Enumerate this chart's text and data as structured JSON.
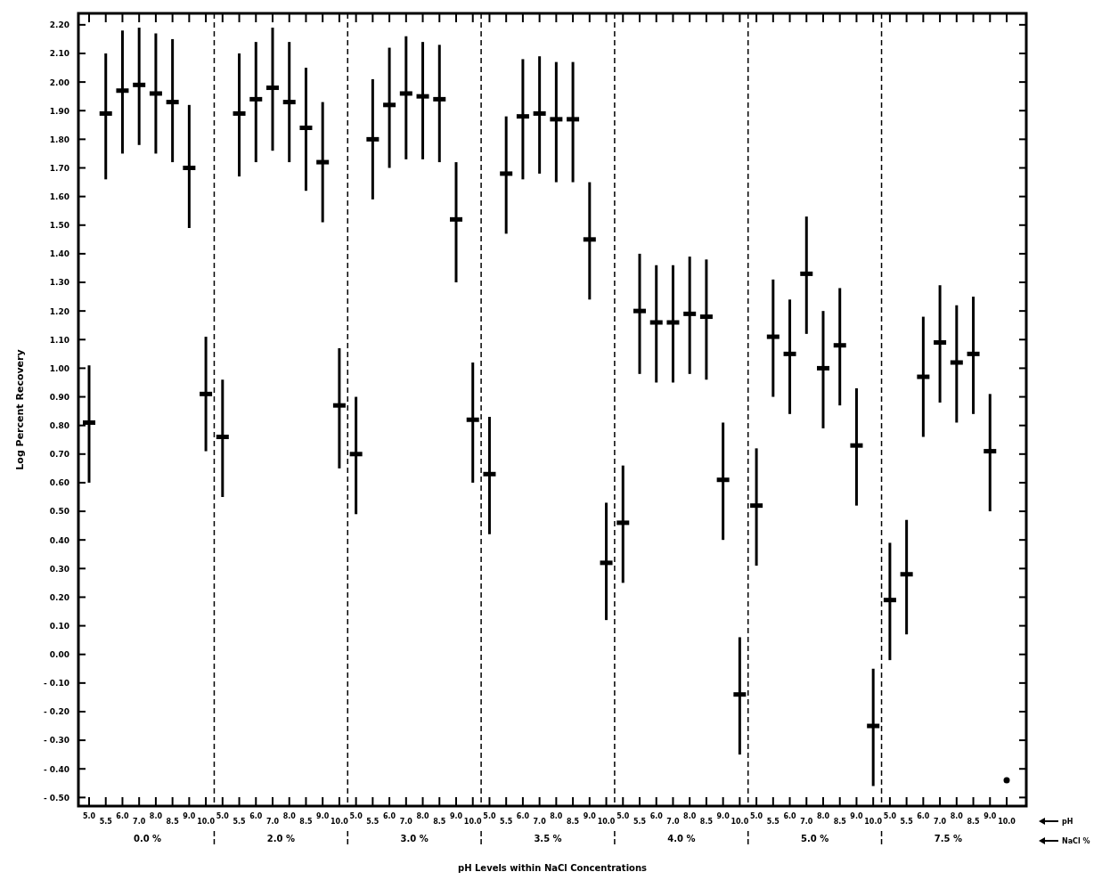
{
  "chart_data": {
    "type": "scatter",
    "xlabel": "pH Levels within NaCl Concentrations",
    "ylabel": "Log Percent Recovery",
    "categories": [
      "5.0",
      "5.5",
      "6.0",
      "7.0",
      "8.0",
      "8.5",
      "9.0",
      "10.0",
      "5.0",
      "5.5",
      "6.0",
      "7.0",
      "8.0",
      "8.5",
      "9.0",
      "10.0",
      "5.0",
      "5.5",
      "6.0",
      "7.0",
      "8.0",
      "8.5",
      "9.0",
      "10.0",
      "5.0",
      "5.5",
      "6.0",
      "7.0",
      "8.0",
      "8.5",
      "9.0",
      "10.0",
      "5.0",
      "5.5",
      "6.0",
      "7.0",
      "8.0",
      "8.5",
      "9.0",
      "10.0",
      "5.0",
      "5.5",
      "6.0",
      "7.0",
      "8.0",
      "8.5",
      "9.0",
      "10.0",
      "5.0",
      "5.5",
      "6.0",
      "7.0",
      "8.0",
      "8.5",
      "9.0",
      "10.0"
    ],
    "series": [
      {
        "color": "#000000",
        "values": [
          0.81,
          1.89,
          1.97,
          1.99,
          1.96,
          1.93,
          1.7,
          0.91,
          0.76,
          1.89,
          1.94,
          1.98,
          1.93,
          1.84,
          1.72,
          0.87,
          0.7,
          1.8,
          1.92,
          1.96,
          1.95,
          1.94,
          1.52,
          0.82,
          0.63,
          1.68,
          1.88,
          1.89,
          1.87,
          1.87,
          1.45,
          0.32,
          0.46,
          1.2,
          1.16,
          1.16,
          1.19,
          1.18,
          0.61,
          -0.14,
          0.52,
          1.11,
          1.05,
          1.33,
          1.0,
          1.08,
          0.73,
          -0.25,
          0.19,
          0.28,
          0.97,
          1.09,
          1.02,
          1.05,
          0.71,
          -0.44
        ],
        "errors": [
          [
            0.6,
            1.01
          ],
          [
            1.66,
            2.1
          ],
          [
            1.75,
            2.18
          ],
          [
            1.78,
            2.19
          ],
          [
            1.75,
            2.17
          ],
          [
            1.72,
            2.15
          ],
          [
            1.49,
            1.92
          ],
          [
            0.71,
            1.11
          ],
          [
            0.55,
            0.96
          ],
          [
            1.67,
            2.1
          ],
          [
            1.72,
            2.14
          ],
          [
            1.76,
            2.19
          ],
          [
            1.72,
            2.14
          ],
          [
            1.62,
            2.05
          ],
          [
            1.51,
            1.93
          ],
          [
            0.65,
            1.07
          ],
          [
            0.49,
            0.9
          ],
          [
            1.59,
            2.01
          ],
          [
            1.7,
            2.12
          ],
          [
            1.73,
            2.16
          ],
          [
            1.73,
            2.14
          ],
          [
            1.72,
            2.13
          ],
          [
            1.3,
            1.72
          ],
          [
            0.6,
            1.02
          ],
          [
            0.42,
            0.83
          ],
          [
            1.47,
            1.88
          ],
          [
            1.66,
            2.08
          ],
          [
            1.68,
            2.09
          ],
          [
            1.65,
            2.07
          ],
          [
            1.65,
            2.07
          ],
          [
            1.24,
            1.65
          ],
          [
            0.12,
            0.53
          ],
          [
            0.25,
            0.66
          ],
          [
            0.98,
            1.4
          ],
          [
            0.95,
            1.36
          ],
          [
            0.95,
            1.36
          ],
          [
            0.98,
            1.39
          ],
          [
            0.96,
            1.38
          ],
          [
            0.4,
            0.81
          ],
          [
            -0.35,
            0.06
          ],
          [
            0.31,
            0.72
          ],
          [
            0.9,
            1.31
          ],
          [
            0.84,
            1.24
          ],
          [
            1.12,
            1.53
          ],
          [
            0.79,
            1.2
          ],
          [
            0.87,
            1.28
          ],
          [
            0.52,
            0.93
          ],
          [
            -0.46,
            -0.05
          ],
          [
            -0.02,
            0.39
          ],
          [
            0.07,
            0.47
          ],
          [
            0.76,
            1.18
          ],
          [
            0.88,
            1.29
          ],
          [
            0.81,
            1.22
          ],
          [
            0.84,
            1.25
          ],
          [
            0.5,
            0.91
          ],
          null
        ]
      }
    ],
    "ylim": [
      -0.53,
      2.24
    ],
    "yticks": [
      {
        "value": 2.2,
        "label": "2.20"
      },
      {
        "value": 2.1,
        "label": "2.10"
      },
      {
        "value": 2.0,
        "label": "2.00"
      },
      {
        "value": 1.9,
        "label": "1.90"
      },
      {
        "value": 1.8,
        "label": "1.80"
      },
      {
        "value": 1.7,
        "label": "1.70"
      },
      {
        "value": 1.6,
        "label": "1.60"
      },
      {
        "value": 1.5,
        "label": "1.50"
      },
      {
        "value": 1.4,
        "label": "1.40"
      },
      {
        "value": 1.3,
        "label": "1.30"
      },
      {
        "value": 1.2,
        "label": "1.20"
      },
      {
        "value": 1.1,
        "label": "1.10"
      },
      {
        "value": 1.0,
        "label": "1.00"
      },
      {
        "value": 0.9,
        "label": "0.90"
      },
      {
        "value": 0.8,
        "label": "0.80"
      },
      {
        "value": 0.7,
        "label": "0.70"
      },
      {
        "value": 0.6,
        "label": "0.60"
      },
      {
        "value": 0.5,
        "label": "0.50"
      },
      {
        "value": 0.4,
        "label": "0.40"
      },
      {
        "value": 0.3,
        "label": "0.30"
      },
      {
        "value": 0.2,
        "label": "0.20"
      },
      {
        "value": 0.1,
        "label": "0.10"
      },
      {
        "value": 0,
        "label": "0.00"
      },
      {
        "value": -0.1,
        "label": "- 0.10"
      },
      {
        "value": -0.2,
        "label": "- 0.20"
      },
      {
        "value": -0.3,
        "label": "- 0.30"
      },
      {
        "value": -0.4,
        "label": "- 0.40"
      },
      {
        "value": -0.5,
        "label": "- 0.50"
      }
    ],
    "annotations": [
      "0.0 %",
      "2.0 %",
      "3.0 %",
      "3.5 %",
      "4.0 %",
      "5.0 %",
      "7.5 %",
      "pH",
      "NaCl %"
    ]
  }
}
